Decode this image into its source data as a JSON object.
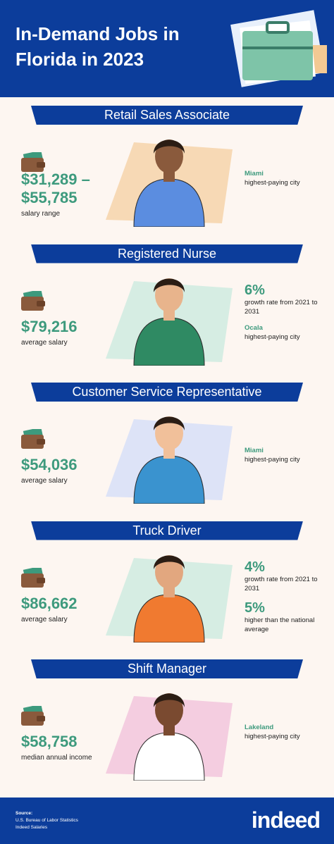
{
  "header": {
    "title": "In-Demand Jobs in Florida in 2023"
  },
  "jobs": [
    {
      "title": "Retail Sales Associate",
      "salary": "$31,289 – $55,785",
      "caption": "salary range",
      "stats": [
        {
          "heading": "Miami",
          "text": "highest-paying city"
        }
      ]
    },
    {
      "title": "Registered Nurse",
      "salary": "$79,216",
      "caption": "average salary",
      "stats": [
        {
          "value": "6%",
          "text": "growth rate from 2021 to 2031"
        },
        {
          "heading": "Ocala",
          "text": "highest-paying city"
        }
      ]
    },
    {
      "title": "Customer Service Representative",
      "salary": "$54,036",
      "caption": "average salary",
      "stats": [
        {
          "heading": "Miami",
          "text": "highest-paying city"
        }
      ]
    },
    {
      "title": "Truck Driver",
      "salary": "$86,662",
      "caption": "average salary",
      "stats": [
        {
          "value": "4%",
          "text": "growth rate from 2021 to 2031"
        },
        {
          "value": "5%",
          "text": "higher than the national average"
        }
      ]
    },
    {
      "title": "Shift Manager",
      "salary": "$58,758",
      "caption": "median annual income",
      "stats": [
        {
          "heading": "Lakeland",
          "text": "highest-paying city"
        }
      ]
    }
  ],
  "footer": {
    "source_label": "Source:",
    "sources": [
      "U.S. Bureau of Labor Statistics",
      "Indeed Salaries"
    ],
    "logo": "indeed"
  }
}
